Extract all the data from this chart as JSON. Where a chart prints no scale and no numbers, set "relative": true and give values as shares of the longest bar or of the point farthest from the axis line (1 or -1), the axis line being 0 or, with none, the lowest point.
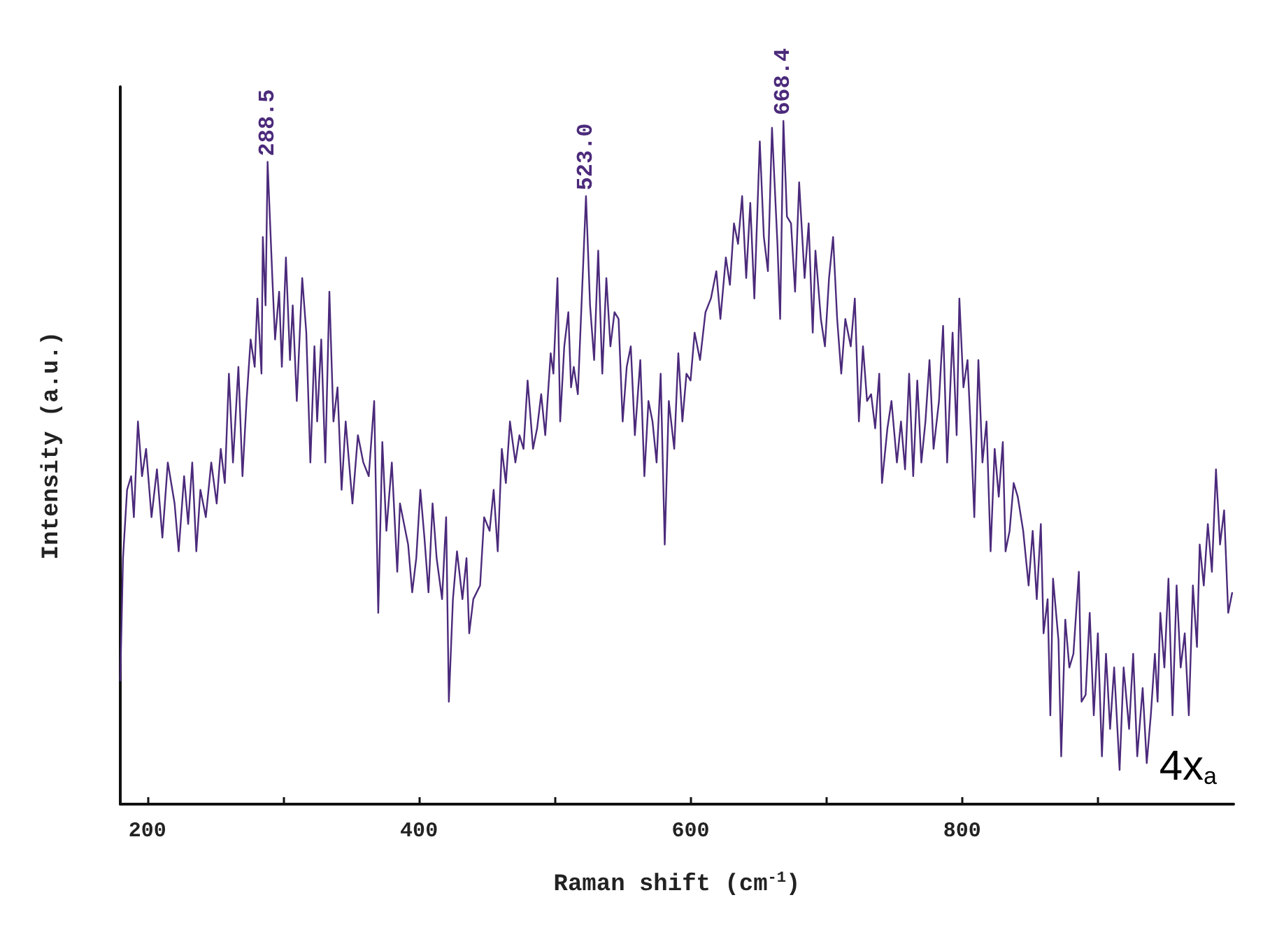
{
  "chart_data": {
    "type": "line",
    "relative": true,
    "xlabel": "Raman shift (cm$^{-1}$)",
    "ylabel": "Intensity (a.u.)",
    "color": "#4b2a7b",
    "xlim": [
      180,
      1000
    ],
    "xticks": [
      200,
      {
        "value": 300,
        "label": null
      },
      400,
      {
        "value": 500,
        "label": null
      },
      600,
      {
        "value": 700,
        "label": null
      },
      800,
      {
        "value": 900,
        "label": null
      }
    ],
    "grid": false,
    "marker": "none",
    "line_style": "solid",
    "annotations": [
      {
        "text": "288.5",
        "x": 288.5,
        "y": 0.94
      },
      {
        "text": "523.0",
        "x": 523,
        "y": 0.89
      },
      {
        "text": "668.4",
        "x": 668.4,
        "y": 1.0
      },
      "4x$_{a}$"
    ],
    "x": [
      180,
      182,
      185,
      188,
      190,
      193,
      196,
      199,
      203,
      207,
      211,
      215,
      220,
      223,
      227,
      230,
      233,
      236,
      239,
      243,
      247,
      251,
      254,
      257,
      260,
      263,
      267,
      270,
      273,
      276,
      279,
      281,
      284,
      285,
      287,
      288.5,
      292,
      294,
      297,
      299,
      302,
      305,
      307,
      310,
      314,
      317,
      320,
      323,
      325,
      328,
      331,
      334,
      337,
      340,
      343,
      346,
      351,
      355,
      359,
      363,
      367,
      370,
      373,
      376,
      380,
      384,
      386,
      389,
      392,
      395,
      398,
      401,
      404,
      407,
      410,
      413,
      417,
      420,
      422,
      425,
      428,
      432,
      435,
      437,
      440,
      445,
      448,
      452,
      455,
      458,
      461,
      464,
      467,
      471,
      474,
      477,
      480,
      484,
      487,
      490,
      493,
      497,
      499,
      502,
      504,
      507,
      510,
      512,
      514,
      517,
      523,
      526,
      529,
      532,
      535,
      538,
      541,
      544,
      547,
      550,
      553,
      556,
      559,
      563,
      566,
      569,
      572,
      575,
      578,
      581,
      584,
      588,
      591,
      594,
      597,
      600,
      603,
      607,
      611,
      615,
      619,
      622,
      626,
      629,
      632,
      635,
      638,
      641,
      644,
      647,
      651,
      654,
      657,
      660,
      664,
      666,
      668.4,
      671,
      674,
      677,
      680,
      684,
      687,
      690,
      692,
      696,
      699,
      702,
      705,
      708,
      711,
      714,
      718,
      721,
      724,
      727,
      730,
      733,
      736,
      739,
      741,
      745,
      748,
      752,
      755,
      758,
      761,
      764,
      767,
      770,
      773,
      776,
      779,
      783,
      786,
      789,
      793,
      796,
      798,
      801,
      804,
      807,
      809,
      812,
      815,
      818,
      821,
      824,
      827,
      830,
      832,
      835,
      838,
      841,
      845,
      849,
      852,
      855,
      858,
      860,
      863,
      865,
      867,
      871,
      873,
      876,
      879,
      882,
      886,
      888,
      891,
      894,
      897,
      900,
      903,
      906,
      909,
      912,
      916,
      919,
      923,
      926,
      929,
      933,
      936,
      939,
      942,
      944,
      946,
      949,
      952,
      955,
      958,
      961,
      964,
      967,
      970,
      973,
      975,
      978,
      981,
      984,
      987,
      990,
      993,
      996,
      999
    ],
    "values": [
      0.18,
      0.36,
      0.46,
      0.48,
      0.42,
      0.56,
      0.48,
      0.52,
      0.42,
      0.49,
      0.39,
      0.5,
      0.44,
      0.37,
      0.48,
      0.41,
      0.5,
      0.37,
      0.46,
      0.42,
      0.5,
      0.44,
      0.52,
      0.47,
      0.63,
      0.5,
      0.64,
      0.48,
      0.59,
      0.68,
      0.64,
      0.74,
      0.63,
      0.83,
      0.73,
      0.94,
      0.77,
      0.68,
      0.75,
      0.64,
      0.8,
      0.65,
      0.73,
      0.59,
      0.77,
      0.69,
      0.5,
      0.67,
      0.56,
      0.68,
      0.5,
      0.75,
      0.56,
      0.61,
      0.46,
      0.56,
      0.44,
      0.54,
      0.5,
      0.48,
      0.59,
      0.28,
      0.53,
      0.4,
      0.5,
      0.34,
      0.44,
      0.41,
      0.38,
      0.31,
      0.36,
      0.46,
      0.39,
      0.31,
      0.44,
      0.36,
      0.3,
      0.42,
      0.15,
      0.3,
      0.37,
      0.3,
      0.36,
      0.25,
      0.3,
      0.32,
      0.42,
      0.4,
      0.46,
      0.37,
      0.52,
      0.47,
      0.56,
      0.5,
      0.54,
      0.52,
      0.62,
      0.52,
      0.55,
      0.6,
      0.54,
      0.66,
      0.63,
      0.77,
      0.56,
      0.67,
      0.72,
      0.61,
      0.64,
      0.6,
      0.89,
      0.73,
      0.65,
      0.81,
      0.63,
      0.77,
      0.67,
      0.72,
      0.71,
      0.56,
      0.64,
      0.67,
      0.54,
      0.65,
      0.48,
      0.59,
      0.56,
      0.5,
      0.63,
      0.38,
      0.59,
      0.52,
      0.66,
      0.56,
      0.63,
      0.62,
      0.69,
      0.65,
      0.72,
      0.74,
      0.78,
      0.71,
      0.8,
      0.76,
      0.85,
      0.82,
      0.89,
      0.77,
      0.88,
      0.74,
      0.97,
      0.83,
      0.78,
      0.99,
      0.82,
      0.71,
      1.0,
      0.86,
      0.85,
      0.75,
      0.91,
      0.77,
      0.85,
      0.69,
      0.81,
      0.71,
      0.67,
      0.77,
      0.83,
      0.71,
      0.63,
      0.71,
      0.67,
      0.74,
      0.56,
      0.67,
      0.59,
      0.6,
      0.55,
      0.63,
      0.47,
      0.55,
      0.59,
      0.5,
      0.56,
      0.49,
      0.63,
      0.48,
      0.62,
      0.5,
      0.56,
      0.65,
      0.52,
      0.59,
      0.7,
      0.5,
      0.69,
      0.54,
      0.74,
      0.61,
      0.65,
      0.52,
      0.42,
      0.65,
      0.5,
      0.56,
      0.37,
      0.52,
      0.45,
      0.53,
      0.37,
      0.4,
      0.47,
      0.45,
      0.4,
      0.32,
      0.4,
      0.3,
      0.41,
      0.25,
      0.3,
      0.13,
      0.33,
      0.24,
      0.07,
      0.27,
      0.2,
      0.22,
      0.34,
      0.15,
      0.16,
      0.28,
      0.13,
      0.25,
      0.07,
      0.22,
      0.11,
      0.2,
      0.05,
      0.2,
      0.11,
      0.22,
      0.07,
      0.17,
      0.06,
      0.13,
      0.22,
      0.15,
      0.28,
      0.2,
      0.33,
      0.13,
      0.32,
      0.2,
      0.25,
      0.13,
      0.32,
      0.23,
      0.38,
      0.32,
      0.41,
      0.34,
      0.49,
      0.38,
      0.43,
      0.28,
      0.31
    ]
  }
}
